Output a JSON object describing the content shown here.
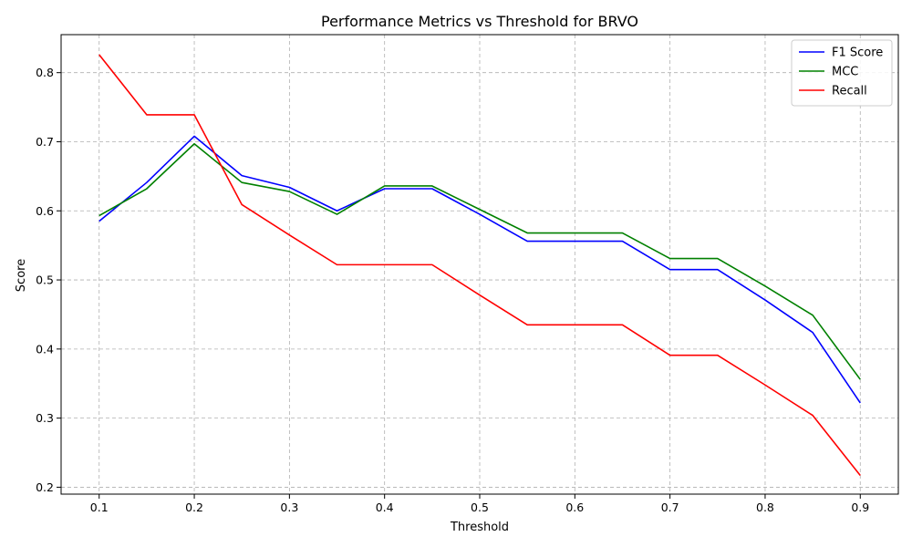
{
  "chart_data": {
    "type": "line",
    "title": "Performance Metrics vs Threshold for BRVO",
    "xlabel": "Threshold",
    "ylabel": "Score",
    "x": [
      0.1,
      0.15,
      0.2,
      0.25,
      0.3,
      0.35,
      0.4,
      0.45,
      0.5,
      0.55,
      0.6,
      0.65,
      0.7,
      0.75,
      0.8,
      0.85,
      0.9
    ],
    "xlim": [
      0.06,
      0.94
    ],
    "ylim": [
      0.19,
      0.855
    ],
    "xticks": [
      "0.1",
      "0.2",
      "0.3",
      "0.4",
      "0.5",
      "0.6",
      "0.7",
      "0.8",
      "0.9"
    ],
    "yticks": [
      "0.2",
      "0.3",
      "0.4",
      "0.5",
      "0.6",
      "0.7",
      "0.8"
    ],
    "grid": true,
    "legend_position": "top-right",
    "series": [
      {
        "name": "F1 Score",
        "color": "#0000ff",
        "values": [
          0.585,
          0.641,
          0.708,
          0.651,
          0.634,
          0.6,
          0.632,
          0.632,
          0.595,
          0.556,
          0.556,
          0.556,
          0.515,
          0.515,
          0.471,
          0.424,
          0.322
        ]
      },
      {
        "name": "MCC",
        "color": "#008000",
        "values": [
          0.593,
          0.632,
          0.697,
          0.641,
          0.628,
          0.595,
          0.636,
          0.636,
          0.602,
          0.568,
          0.568,
          0.568,
          0.531,
          0.531,
          0.491,
          0.449,
          0.356
        ]
      },
      {
        "name": "Recall",
        "color": "#ff0000",
        "values": [
          0.826,
          0.739,
          0.739,
          0.609,
          0.565,
          0.522,
          0.522,
          0.522,
          0.478,
          0.435,
          0.435,
          0.435,
          0.391,
          0.391,
          0.348,
          0.304,
          0.217
        ]
      }
    ]
  }
}
